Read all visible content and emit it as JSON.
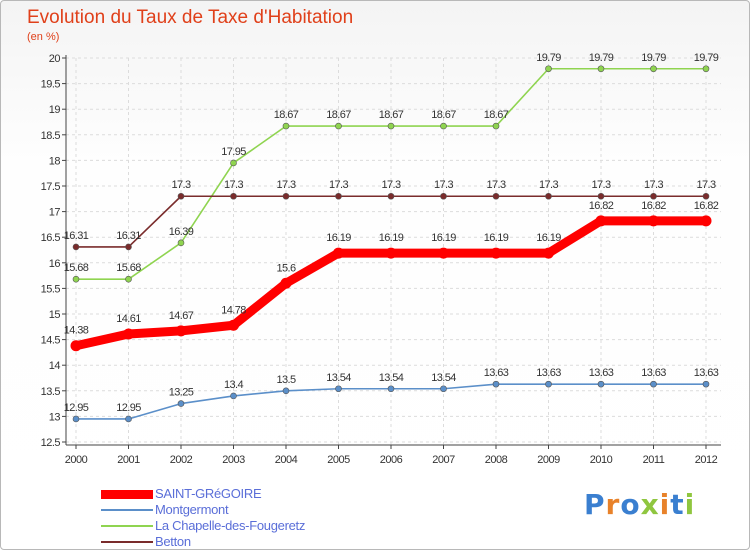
{
  "header": {
    "title": "Evolution du Taux de Taxe d'Habitation",
    "subtitle": "(en %)"
  },
  "chart_data": {
    "type": "line",
    "title": "Evolution du Taux de Taxe d'Habitation",
    "ylabel": "(en %)",
    "xlabel": "",
    "categories": [
      "2000",
      "2001",
      "2002",
      "2003",
      "2004",
      "2005",
      "2006",
      "2007",
      "2008",
      "2009",
      "2010",
      "2011",
      "2012"
    ],
    "ylim": [
      12.5,
      20
    ],
    "yticks": [
      "12.5",
      "13",
      "13.5",
      "14",
      "14.5",
      "15",
      "15.5",
      "16",
      "16.5",
      "17",
      "17.5",
      "18",
      "18.5",
      "19",
      "19.5",
      "20"
    ],
    "grid": true,
    "legend_position": "bottom-left",
    "series": [
      {
        "name": "SAINT-GRéGOIRE",
        "color": "#ff0000",
        "values": [
          14.38,
          14.61,
          14.67,
          14.78,
          15.6,
          16.19,
          16.19,
          16.19,
          16.19,
          16.19,
          16.82,
          16.82,
          16.82
        ],
        "labels": [
          "14.38",
          "14.61",
          "14.67",
          "14.78",
          "15.6",
          "16.19",
          "16.19",
          "16.19",
          "16.19",
          "16.19",
          "16.82",
          "16.82",
          "16.82"
        ]
      },
      {
        "name": "Montgermont",
        "color": "#5b8fc9",
        "values": [
          12.95,
          12.95,
          13.25,
          13.4,
          13.5,
          13.54,
          13.54,
          13.54,
          13.63,
          13.63,
          13.63,
          13.63,
          13.63
        ],
        "labels": [
          "12.95",
          "12.95",
          "13.25",
          "13.4",
          "13.5",
          "13.54",
          "13.54",
          "13.54",
          "13.63",
          "13.63",
          "13.63",
          "13.63",
          "13.63"
        ]
      },
      {
        "name": "La Chapelle-des-Fougeretz",
        "color": "#8fd450",
        "values": [
          15.68,
          15.68,
          16.39,
          17.95,
          18.67,
          18.67,
          18.67,
          18.67,
          18.67,
          19.79,
          19.79,
          19.79,
          19.79
        ],
        "labels": [
          "15.68",
          "15.68",
          "16.39",
          "17.95",
          "18.67",
          "18.67",
          "18.67",
          "18.67",
          "18.67",
          "19.79",
          "19.79",
          "19.79",
          "19.79"
        ]
      },
      {
        "name": "Betton",
        "color": "#7a2c2c",
        "values": [
          16.31,
          16.31,
          17.3,
          17.3,
          17.3,
          17.3,
          17.3,
          17.3,
          17.3,
          17.3,
          17.3,
          17.3,
          17.3
        ],
        "labels": [
          "16.31",
          "16.31",
          "17.3",
          "17.3",
          "17.3",
          "17.3",
          "17.3",
          "17.3",
          "17.3",
          "17.3",
          "17.3",
          "17.3",
          "17.3"
        ]
      }
    ]
  },
  "logo": {
    "letters": [
      "P",
      "r",
      "o",
      "x",
      "i",
      "t",
      "i"
    ],
    "colors": [
      "#3a7fd0",
      "#e8822a",
      "#3a7fd0",
      "#8fc63f",
      "#e8822a",
      "#3a7fd0",
      "#8fc63f"
    ]
  }
}
